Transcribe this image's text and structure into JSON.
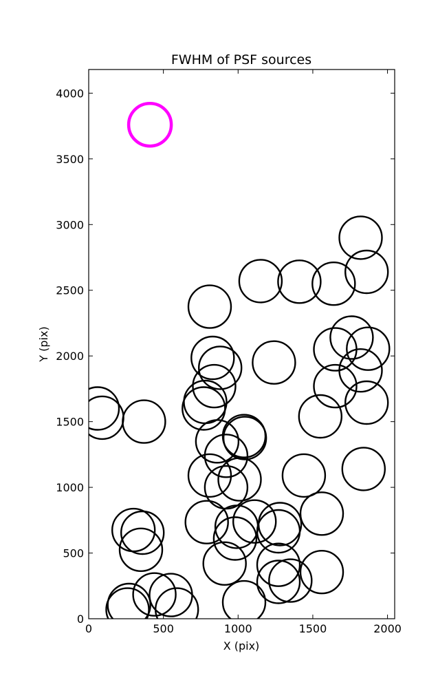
{
  "chart_data": {
    "type": "scatter",
    "title": "FWHM of PSF sources",
    "xlabel": "X (pix)",
    "ylabel": "Y (pix)",
    "xlim": [
      0,
      2048
    ],
    "ylim": [
      0,
      4180
    ],
    "xticks": [
      0,
      500,
      1000,
      1500,
      2000
    ],
    "yticks": [
      0,
      500,
      1000,
      1500,
      2000,
      2500,
      3000,
      3500,
      4000
    ],
    "grid": false,
    "marker": "open-circle",
    "colors": {
      "sources": "#000000",
      "reference": "#ff00ff",
      "axes": "#000000"
    },
    "reference_source": {
      "x": 410,
      "y": 3760
    },
    "series": [
      {
        "points": [
          [
            1820,
            2900
          ],
          [
            1860,
            2640
          ],
          [
            1150,
            2570
          ],
          [
            1410,
            2565
          ],
          [
            1640,
            2550
          ],
          [
            810,
            2375
          ],
          [
            1760,
            2140
          ],
          [
            830,
            1985
          ],
          [
            1650,
            2050
          ],
          [
            1870,
            2055
          ],
          [
            880,
            1910
          ],
          [
            1240,
            1950
          ],
          [
            1820,
            1890
          ],
          [
            840,
            1770
          ],
          [
            1650,
            1770
          ],
          [
            780,
            1650
          ],
          [
            770,
            1600
          ],
          [
            60,
            1600
          ],
          [
            90,
            1530
          ],
          [
            370,
            1500
          ],
          [
            1860,
            1645
          ],
          [
            1550,
            1540
          ],
          [
            860,
            1350
          ],
          [
            1040,
            1390
          ],
          [
            1045,
            1375
          ],
          [
            920,
            1240
          ],
          [
            810,
            1090
          ],
          [
            1010,
            1060
          ],
          [
            920,
            1000
          ],
          [
            1440,
            1090
          ],
          [
            1840,
            1140
          ],
          [
            1560,
            800
          ],
          [
            790,
            735
          ],
          [
            990,
            700
          ],
          [
            1110,
            740
          ],
          [
            1280,
            720
          ],
          [
            1270,
            665
          ],
          [
            980,
            610
          ],
          [
            300,
            675
          ],
          [
            360,
            655
          ],
          [
            350,
            525
          ],
          [
            1270,
            410
          ],
          [
            910,
            420
          ],
          [
            1560,
            355
          ],
          [
            1270,
            280
          ],
          [
            1350,
            290
          ],
          [
            270,
            105
          ],
          [
            440,
            185
          ],
          [
            550,
            180
          ],
          [
            590,
            70
          ],
          [
            260,
            70
          ],
          [
            1040,
            125
          ]
        ]
      }
    ]
  }
}
